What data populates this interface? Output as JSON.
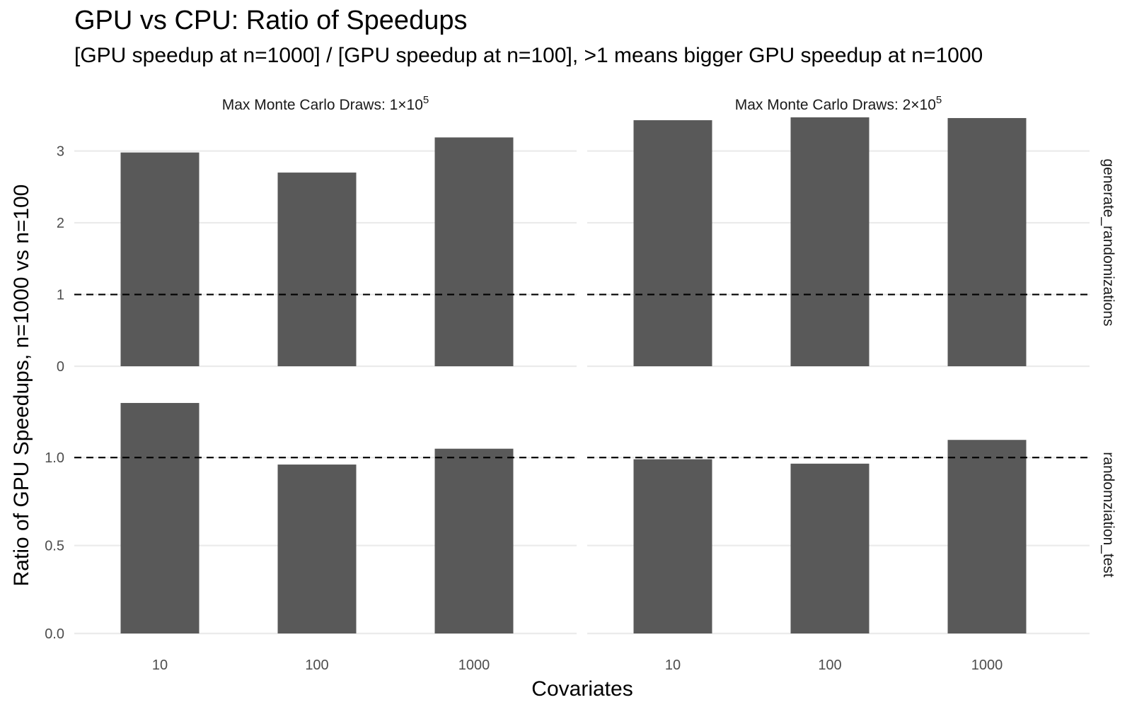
{
  "chart_data": {
    "type": "bar",
    "title": "GPU vs CPU: Ratio of Speedups",
    "subtitle": "[GPU speedup at n=1000] / [GPU speedup at n=100], >1 means bigger GPU speedup at n=1000",
    "xlabel": "Covariates",
    "ylabel": "Ratio of GPU Speedups, n=1000 vs n=100",
    "categories": [
      "10",
      "100",
      "1000"
    ],
    "reference_line": 1,
    "bar_color": "#595959",
    "grid_color": "#ebebeb",
    "columns": [
      {
        "prefix": "Max Monte Carlo Draws:",
        "coef": "1",
        "exp": "5"
      },
      {
        "prefix": "Max Monte Carlo Draws:",
        "coef": "2",
        "exp": "5"
      }
    ],
    "rows": [
      {
        "label": "generate_randomizations",
        "ylim": [
          0,
          3.45
        ],
        "ticks": [
          0,
          1,
          2,
          3
        ],
        "tick_labels": [
          "0",
          "1",
          "2",
          "3"
        ],
        "values": [
          [
            2.98,
            2.7,
            3.19
          ],
          [
            3.43,
            3.47,
            3.46
          ]
        ]
      },
      {
        "label": "randomziation_test",
        "ylim": [
          0,
          1.35
        ],
        "ticks": [
          0,
          0.5,
          1.0
        ],
        "tick_labels": [
          "0.0",
          "0.5",
          "1.0"
        ],
        "values": [
          [
            1.31,
            0.96,
            1.05
          ],
          [
            0.99,
            0.965,
            1.1
          ]
        ]
      }
    ]
  }
}
